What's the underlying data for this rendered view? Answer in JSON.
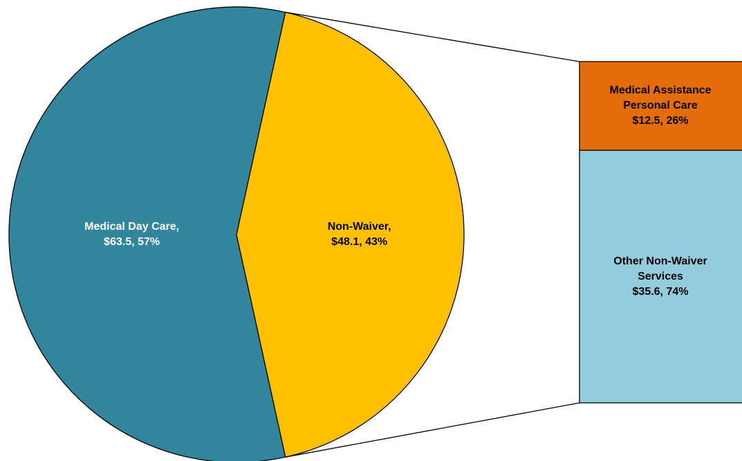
{
  "chart_data": {
    "type": "bar-of-pie",
    "pie": {
      "categories": [
        "Medical Day Care,",
        "Non-Waiver,"
      ],
      "values": [
        63.5,
        48.1
      ],
      "value_labels": [
        "$63.5, 57%",
        "$48.1, 43%"
      ],
      "colors": [
        "#31859c",
        "#ffc000"
      ],
      "label_colors": [
        "#ffffff",
        "#000000"
      ]
    },
    "bar": {
      "categories": [
        "Medical Assistance Personal Care",
        "Other Non-Waiver Services"
      ],
      "values": [
        12.5,
        35.6
      ],
      "value_labels": [
        "$12.5, 26%",
        "$35.6, 74%"
      ],
      "colors": [
        "#e46c0a",
        "#93cddd"
      ],
      "label_colors": [
        "#000000",
        "#000000"
      ]
    }
  }
}
